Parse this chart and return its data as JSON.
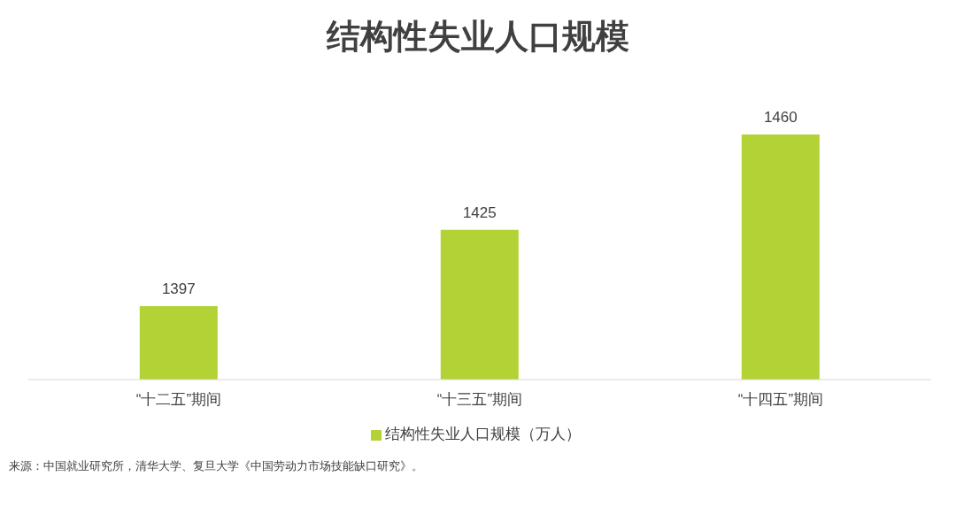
{
  "chart_data": {
    "type": "bar",
    "title": "结构性失业人口规模",
    "categories": [
      "“十二五”期间",
      "“十三五”期间",
      "“十四五”期间"
    ],
    "series": [
      {
        "name": "结构性失业人口规模（万人）",
        "color": "#b2d235",
        "values": [
          1397,
          1425,
          1460
        ]
      }
    ],
    "ylim": [
      1370,
      1460
    ],
    "tick_labels": "x",
    "data_labels": true,
    "legend": "bottom",
    "annotations": [
      "来源：中国就业研究所，清华大学、复旦大学《中国劳动力市场技能缺口研究》。"
    ]
  }
}
